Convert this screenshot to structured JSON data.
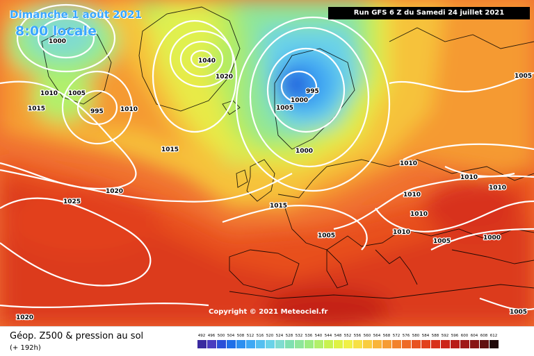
{
  "header": {
    "date": "Dimanche 1 août 2021",
    "time": "8:00 locale",
    "run_info": "Run GFS 6 Z du Samedi 24 juillet 2021"
  },
  "copyright": "Copyright © 2021 Meteociel.fr",
  "footer": {
    "title": "Géop. Z500 & pression au sol",
    "forecast_hour": "(+ 192h)"
  },
  "legend": {
    "values": [
      "492",
      "496",
      "500",
      "504",
      "508",
      "512",
      "516",
      "520",
      "524",
      "528",
      "532",
      "536",
      "540",
      "544",
      "548",
      "552",
      "556",
      "560",
      "564",
      "568",
      "572",
      "576",
      "580",
      "584",
      "588",
      "592",
      "596",
      "600",
      "604",
      "608",
      "612"
    ],
    "colors": [
      "#3a2aa0",
      "#4a3cc0",
      "#2a4fd8",
      "#1f6fe8",
      "#2d8ff0",
      "#3fa8f4",
      "#55bff0",
      "#6ad2e8",
      "#7fdcd0",
      "#7fe0b0",
      "#8ee69a",
      "#9cec80",
      "#b2f06a",
      "#c8f250",
      "#dff244",
      "#f0f046",
      "#f7e044",
      "#f9cc3e",
      "#f9b43a",
      "#f69c34",
      "#f2822c",
      "#ee6a26",
      "#e85220",
      "#e2401c",
      "#d8301a",
      "#cc2418",
      "#b81c18",
      "#a01818",
      "#881414",
      "#601010",
      "#200808"
    ]
  },
  "isobars": [
    {
      "value": "1000",
      "label": "1000"
    },
    {
      "value": "1005",
      "label": "1005"
    },
    {
      "value": "1010",
      "label": "1010"
    },
    {
      "value": "995",
      "label": "995"
    },
    {
      "value": "1010",
      "label": "1010"
    },
    {
      "value": "1015",
      "label": "1015"
    },
    {
      "value": "1040",
      "label": "1040"
    },
    {
      "value": "1020",
      "label": "1020"
    },
    {
      "value": "1015",
      "label": "1015"
    },
    {
      "value": "1020",
      "label": "1020"
    },
    {
      "value": "1025",
      "label": "1025"
    },
    {
      "value": "995",
      "label": "995"
    },
    {
      "value": "1000",
      "label": "1000"
    },
    {
      "value": "1005",
      "label": "1005"
    },
    {
      "value": "1000",
      "label": "1000"
    },
    {
      "value": "1010",
      "label": "1010"
    },
    {
      "value": "1010",
      "label": "1010"
    },
    {
      "value": "1010",
      "label": "1010"
    },
    {
      "value": "1010",
      "label": "1010"
    },
    {
      "value": "1010",
      "label": "1010"
    },
    {
      "value": "1010",
      "label": "1010"
    },
    {
      "value": "1005",
      "label": "1005"
    },
    {
      "value": "1000",
      "label": "1000"
    },
    {
      "value": "1015",
      "label": "1015"
    },
    {
      "value": "1005",
      "label": "1005"
    },
    {
      "value": "1005",
      "label": "1005"
    },
    {
      "value": "1020",
      "label": "1020"
    },
    {
      "value": "1005",
      "label": "1005"
    }
  ]
}
